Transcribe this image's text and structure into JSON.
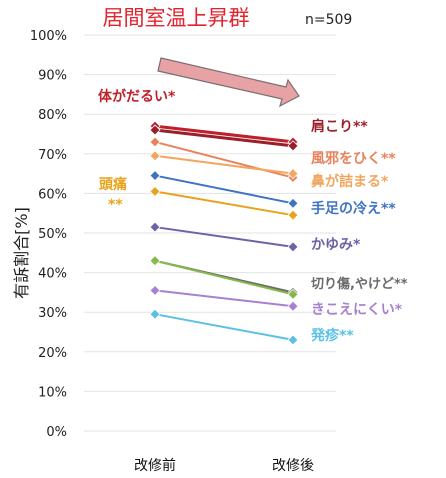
{
  "chart_data": {
    "type": "line",
    "title": "居間室温上昇群",
    "sample_size": "n=509",
    "ylabel": "有訴割合[%]",
    "ylim": [
      0,
      100
    ],
    "yticks": [
      0,
      10,
      20,
      30,
      40,
      50,
      60,
      70,
      80,
      90,
      100
    ],
    "ytick_labels": [
      "0%",
      "10%",
      "20%",
      "30%",
      "40%",
      "50%",
      "60%",
      "70%",
      "80%",
      "90%",
      "100%"
    ],
    "categories": [
      "改修前",
      "改修後"
    ],
    "series": [
      {
        "name": "体がだるい*",
        "values": [
          77,
          73
        ],
        "color": "#c0202a"
      },
      {
        "name": "肩こり**",
        "values": [
          76,
          72
        ],
        "color": "#9b1f2a"
      },
      {
        "name": "風邪をひく**",
        "values": [
          73,
          64
        ],
        "color": "#e8825a"
      },
      {
        "name": "鼻が詰まる*",
        "values": [
          69.5,
          65
        ],
        "color": "#f2a65e"
      },
      {
        "name": "頭痛 **",
        "values": [
          60.5,
          54.5
        ],
        "color": "#e8a31c"
      },
      {
        "name": "手足の冷え**",
        "values": [
          64.5,
          57.5
        ],
        "color": "#3d72c4"
      },
      {
        "name": "かゆみ*",
        "values": [
          51.5,
          46.5
        ],
        "color": "#7060a8"
      },
      {
        "name": "切り傷,やけど**",
        "values": [
          43,
          35
        ],
        "color": "#6a6a6a"
      },
      {
        "name": "",
        "values": [
          43,
          34.5
        ],
        "color": "#86b84a"
      },
      {
        "name": "きこえにくい*",
        "values": [
          35.5,
          31.5
        ],
        "color": "#a880d0"
      },
      {
        "name": "発疹**",
        "values": [
          29.5,
          23
        ],
        "color": "#5bc0e6"
      }
    ],
    "grid": true
  }
}
